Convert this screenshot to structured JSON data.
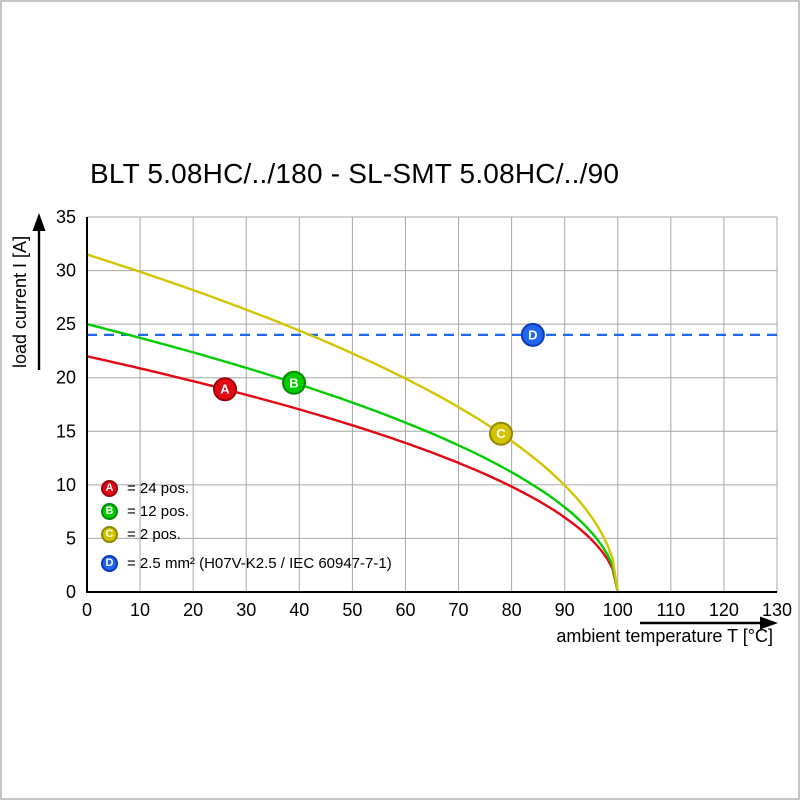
{
  "chart": {
    "title": "BLT 5.08HC/../180 - SL-SMT 5.08HC/../90",
    "ylabel": "load current I [A]",
    "xlabel": "ambient temperature T [°C]"
  },
  "chart_data": {
    "type": "line",
    "title": "BLT 5.08HC/../180 - SL-SMT 5.08HC/../90",
    "xlabel": "ambient temperature T [°C]",
    "ylabel": "load current I [A]",
    "xlim": [
      0,
      130
    ],
    "ylim": [
      0,
      35
    ],
    "x_ticks": [
      0,
      10,
      20,
      30,
      40,
      50,
      60,
      70,
      80,
      90,
      100,
      110,
      120,
      130
    ],
    "y_ticks": [
      0,
      5,
      10,
      15,
      20,
      25,
      30,
      35
    ],
    "grid": true,
    "legend_position": "lower-left-inside",
    "model_note": "derating curves I(T) = I0 * sqrt(1 - T/100)",
    "series": [
      {
        "id": "A",
        "label": "= 24 pos.",
        "style": "curve",
        "color": "#e30613",
        "ring": "#9e0009",
        "i0": 22,
        "t_end": 100,
        "marker_t": 26,
        "points": [
          [
            0,
            22
          ],
          [
            10,
            20.9
          ],
          [
            20,
            19.7
          ],
          [
            30,
            18.4
          ],
          [
            40,
            17.0
          ],
          [
            50,
            15.6
          ],
          [
            60,
            13.9
          ],
          [
            70,
            12.0
          ],
          [
            80,
            9.8
          ],
          [
            90,
            7.0
          ],
          [
            100,
            0
          ]
        ]
      },
      {
        "id": "B",
        "label": "= 12 pos.",
        "style": "curve",
        "color": "#00cc00",
        "ring": "#008a00",
        "i0": 25,
        "t_end": 100,
        "marker_t": 39,
        "points": [
          [
            0,
            25
          ],
          [
            10,
            23.7
          ],
          [
            20,
            22.4
          ],
          [
            30,
            20.9
          ],
          [
            40,
            19.4
          ],
          [
            50,
            17.7
          ],
          [
            60,
            15.8
          ],
          [
            70,
            13.7
          ],
          [
            80,
            11.2
          ],
          [
            90,
            7.9
          ],
          [
            100,
            0
          ]
        ]
      },
      {
        "id": "C",
        "label": "= 2 pos.",
        "style": "curve",
        "color": "#d4c400",
        "ring": "#8f8600",
        "i0": 31.5,
        "t_end": 100,
        "marker_t": 78,
        "points": [
          [
            0,
            31.5
          ],
          [
            10,
            29.9
          ],
          [
            20,
            28.2
          ],
          [
            30,
            26.4
          ],
          [
            40,
            24.4
          ],
          [
            50,
            22.3
          ],
          [
            60,
            19.9
          ],
          [
            70,
            17.3
          ],
          [
            80,
            14.1
          ],
          [
            90,
            10.0
          ],
          [
            100,
            0
          ]
        ]
      },
      {
        "id": "D",
        "label": "= 2.5 mm² (H07V-K2.5 / IEC 60947-7-1)",
        "style": "hline",
        "dashed": true,
        "color": "#1f66f0",
        "ring": "#0b3ab8",
        "value": 24,
        "marker_t": 84,
        "points": [
          [
            0,
            24
          ],
          [
            130,
            24
          ]
        ]
      }
    ],
    "colors": {
      "axis": "#000000",
      "grid": "#a6a6a6",
      "marker_letter": "#ffffff"
    }
  }
}
